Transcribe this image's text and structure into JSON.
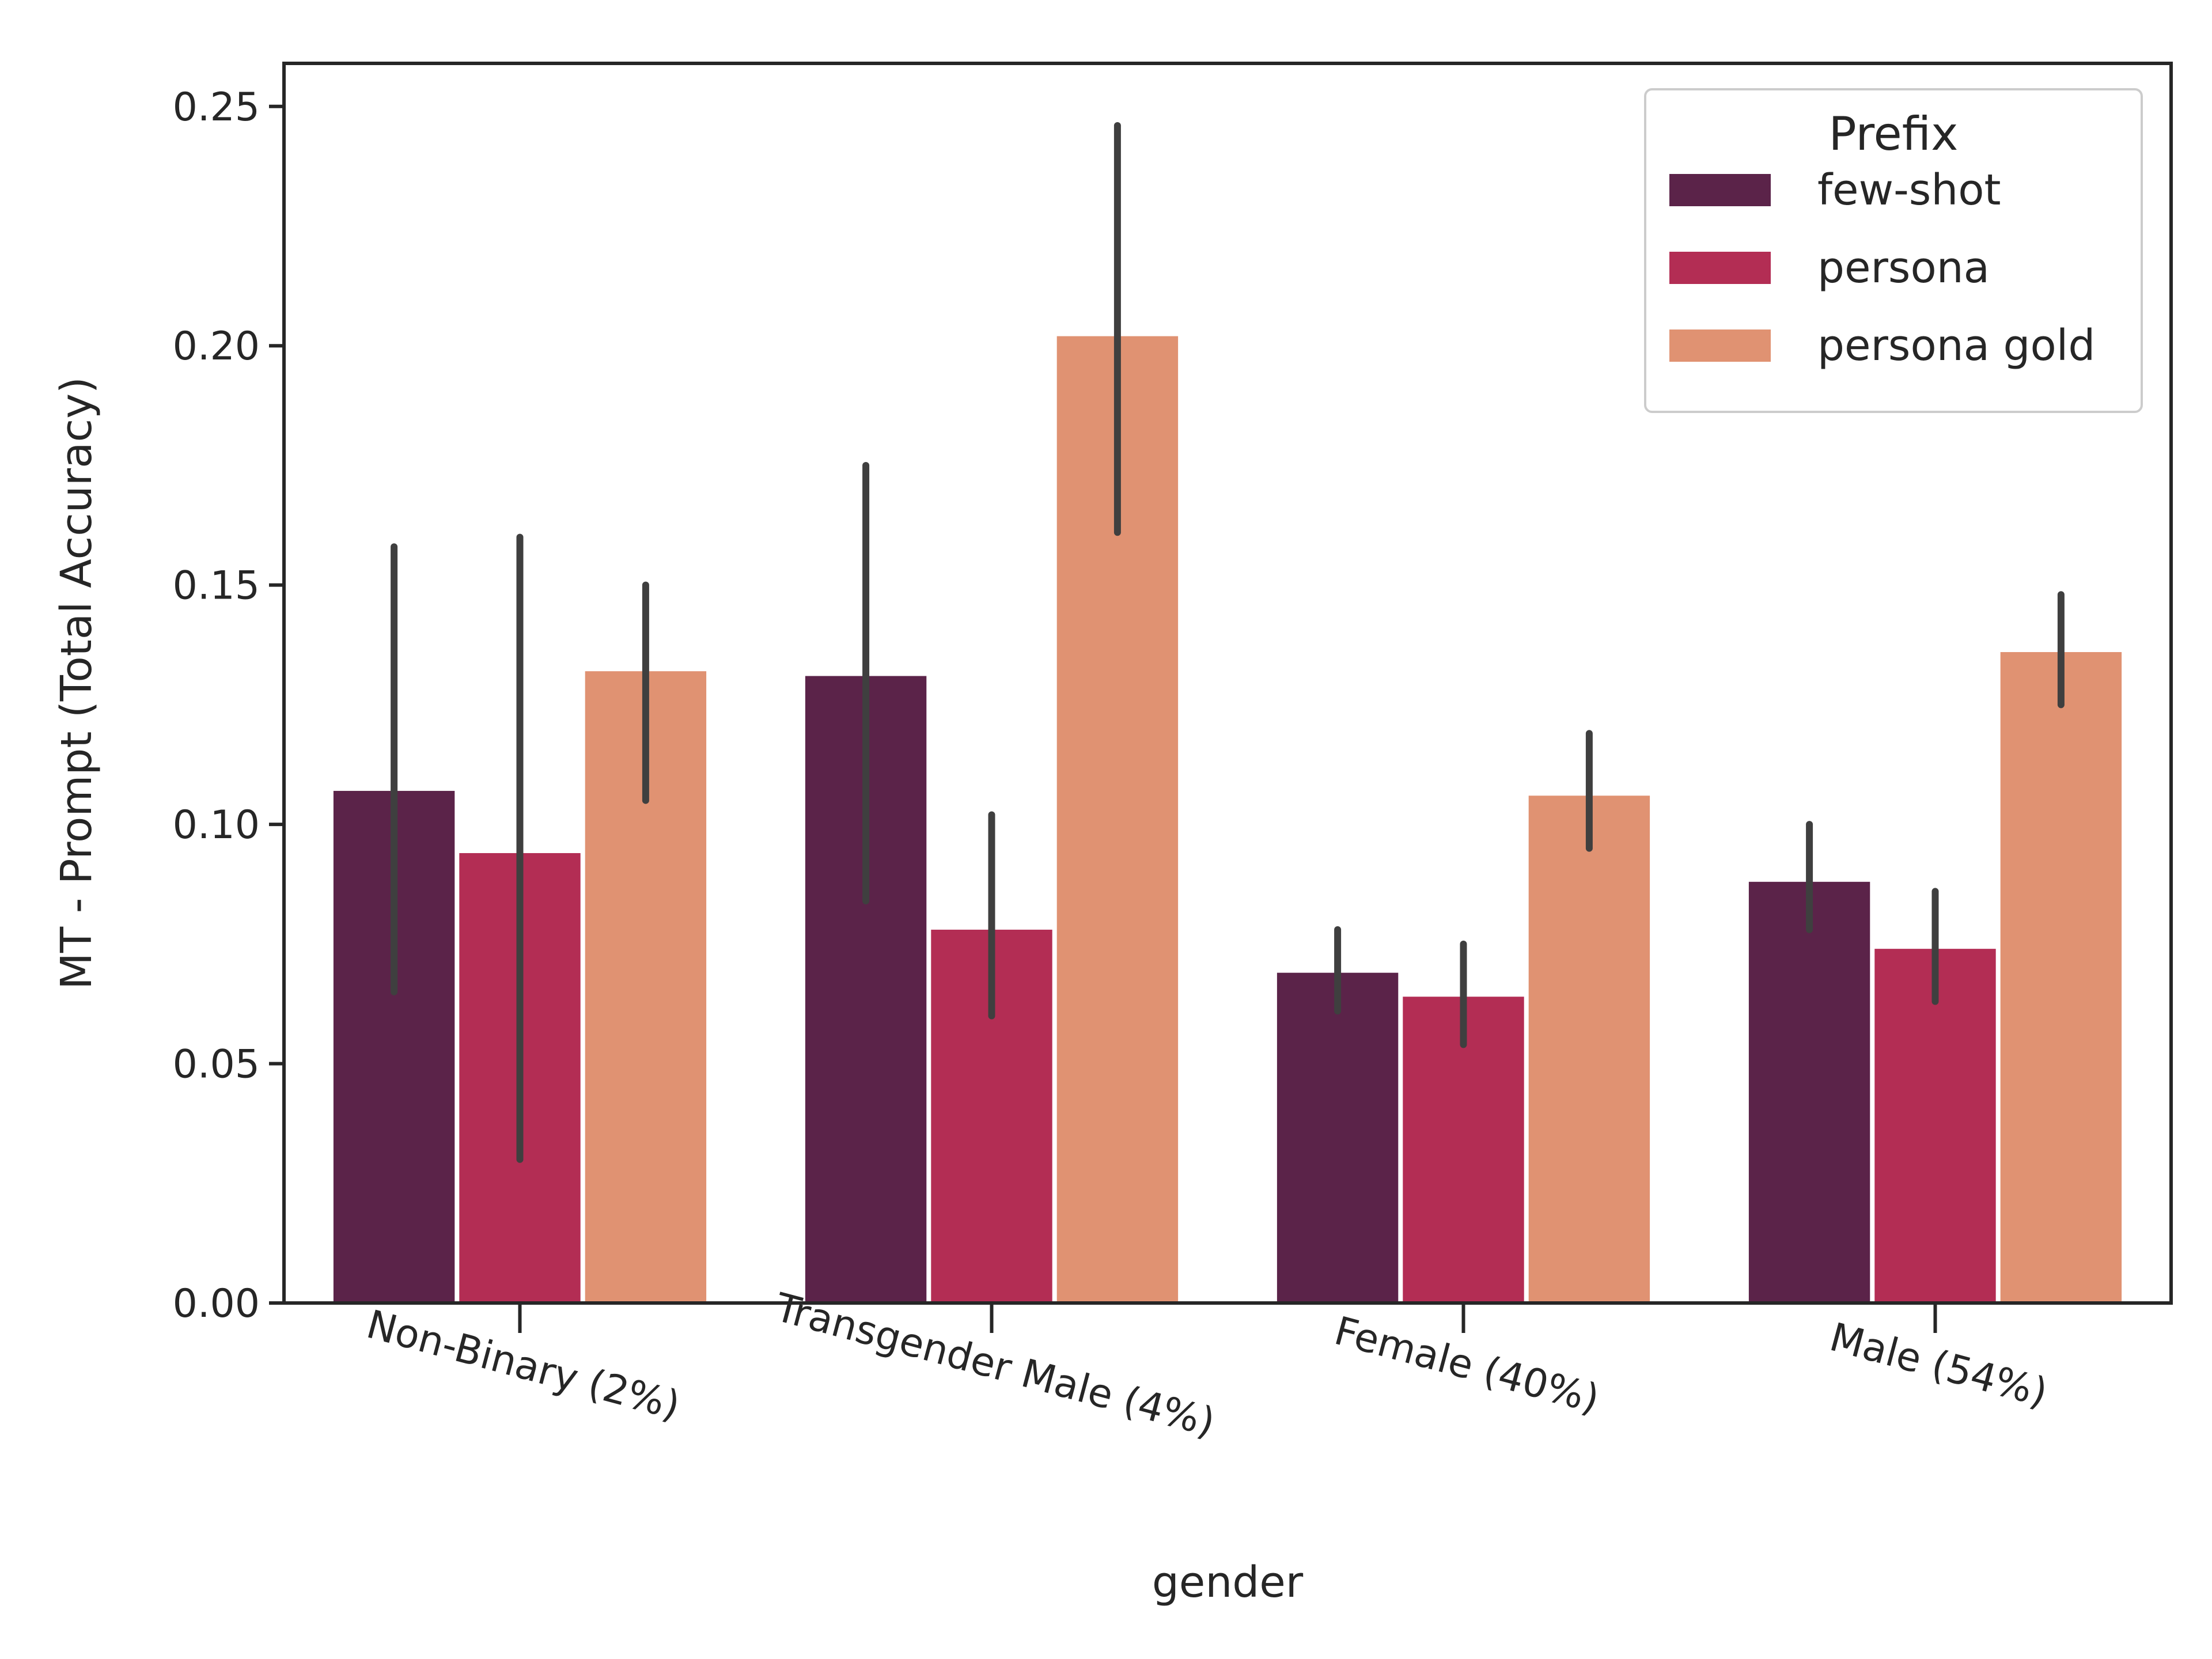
{
  "chart_data": {
    "type": "bar",
    "title": "",
    "xlabel": "gender",
    "ylabel": "MT - Prompt (Total Accuracy)",
    "ylim": [
      0,
      0.259
    ],
    "yticks": [
      "0.00",
      "0.05",
      "0.10",
      "0.15",
      "0.20",
      "0.25"
    ],
    "categories": [
      "Non-Binary (2%)",
      "Transgender Male (4%)",
      "Female (40%)",
      "Male (54%)"
    ],
    "grid": false,
    "legend": {
      "title": "Prefix",
      "placement": "top-right"
    },
    "error_bars": true,
    "series": [
      {
        "name": "few-shot",
        "color": "#5b2349",
        "values": [
          0.107,
          0.131,
          0.069,
          0.088
        ],
        "err_low": [
          0.065,
          0.084,
          0.061,
          0.078
        ],
        "err_high": [
          0.158,
          0.175,
          0.078,
          0.1
        ]
      },
      {
        "name": "persona",
        "color": "#b32d54",
        "values": [
          0.094,
          0.078,
          0.064,
          0.074
        ],
        "err_low": [
          0.03,
          0.06,
          0.054,
          0.063
        ],
        "err_high": [
          0.16,
          0.102,
          0.075,
          0.086
        ]
      },
      {
        "name": "persona gold",
        "color": "#e09272",
        "values": [
          0.132,
          0.202,
          0.106,
          0.136
        ],
        "err_low": [
          0.105,
          0.161,
          0.095,
          0.125
        ],
        "err_high": [
          0.15,
          0.246,
          0.119,
          0.148
        ]
      }
    ]
  }
}
